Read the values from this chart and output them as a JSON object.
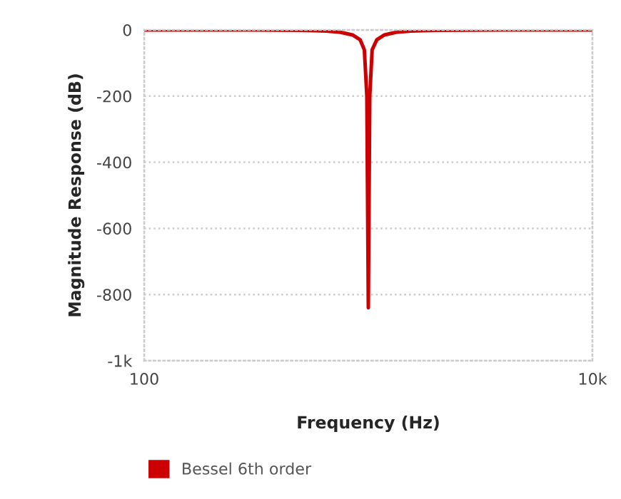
{
  "chart_data": {
    "type": "line",
    "xlabel": "Frequency (Hz)",
    "ylabel": "Magnitude Response (dB)",
    "x": [
      100,
      300,
      500,
      650,
      750,
      850,
      920,
      960,
      985,
      1000,
      1015,
      1040,
      1090,
      1180,
      1330,
      1550,
      2000,
      4000,
      10000
    ],
    "series": [
      {
        "name": "Bessel 6th order",
        "color": "#cc0000",
        "values": [
          0,
          0,
          -1,
          -3,
          -7,
          -15,
          -30,
          -60,
          -200,
          -840,
          -200,
          -60,
          -30,
          -15,
          -7,
          -3,
          -1,
          0,
          0
        ]
      }
    ],
    "log": "x",
    "xlim": [
      100,
      10000
    ],
    "xticks": [
      100,
      {
        "value": 10000,
        "label": "10k"
      }
    ],
    "ylim": [
      -1000,
      0
    ],
    "yticks": [
      {
        "value": -1000,
        "label": "-1k"
      },
      -800,
      -600,
      -400,
      -200,
      0
    ],
    "grid": true,
    "legend": "bottom left",
    "marker": "none",
    "line_style": "solid"
  }
}
